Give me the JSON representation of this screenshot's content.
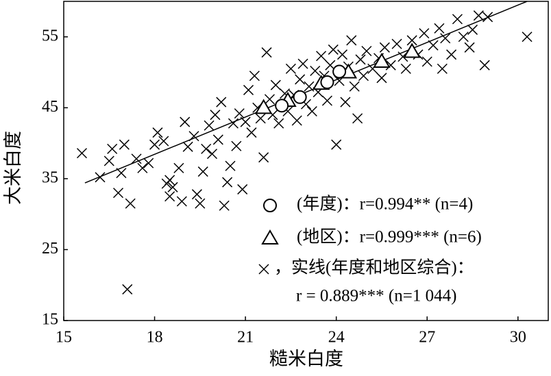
{
  "chart_data": {
    "type": "scatter",
    "xlabel": "糙米白度",
    "ylabel": "大米白度",
    "xlim": [
      15,
      31
    ],
    "ylim": [
      15,
      60
    ],
    "xticks": [
      15,
      18,
      21,
      24,
      27,
      30
    ],
    "yticks": [
      15,
      25,
      35,
      45,
      55
    ],
    "series": [
      {
        "name": "(年度)：r=0.994** (n=4)",
        "marker": "circle",
        "color": "#000000",
        "x": [
          22.2,
          22.8,
          23.7,
          24.1
        ],
        "values": [
          45.3,
          46.5,
          48.6,
          50.1
        ]
      },
      {
        "name": "(地区)：r=0.999*** (n=6)",
        "marker": "triangle",
        "color": "#000000",
        "x": [
          21.6,
          22.4,
          23.5,
          24.4,
          25.5,
          26.5
        ],
        "values": [
          45.0,
          46.0,
          48.4,
          50.0,
          51.5,
          52.9
        ]
      },
      {
        "name": "，实线(年度和地区综合)：",
        "marker": "x",
        "color": "#000000",
        "x": [
          15.6,
          16.2,
          16.5,
          16.6,
          16.8,
          16.9,
          17,
          17.1,
          17.2,
          17.4,
          17.6,
          17.8,
          18,
          18.1,
          18.3,
          18.4,
          18.5,
          18.5,
          18.6,
          18.8,
          18.9,
          19,
          19.1,
          19.3,
          19.4,
          19.5,
          19.6,
          19.7,
          19.8,
          19.9,
          20,
          20.1,
          20.2,
          20.3,
          20.4,
          20.5,
          20.6,
          20.7,
          20.8,
          20.9,
          21,
          21.1,
          21.2,
          21.3,
          21.4,
          21.5,
          21.6,
          21.7,
          21.8,
          21.9,
          22,
          22.1,
          22.3,
          22.4,
          22.5,
          22.6,
          22.7,
          22.8,
          22.9,
          23,
          23.1,
          23.2,
          23.3,
          23.4,
          23.5,
          23.6,
          23.7,
          23.8,
          23.9,
          24,
          24.1,
          24.2,
          24.3,
          24.4,
          24.5,
          24.6,
          24.7,
          24.8,
          24.9,
          25,
          25.2,
          25.4,
          25.5,
          25.6,
          25.8,
          26,
          26.2,
          26.3,
          26.5,
          26.7,
          26.9,
          27,
          27.2,
          27.4,
          27.5,
          27.6,
          27.8,
          28,
          28.2,
          28.4,
          28.5,
          28.7,
          28.9,
          29,
          30.3
        ],
        "values": [
          38.6,
          35.2,
          37.5,
          39.2,
          33,
          35.8,
          39.8,
          19.4,
          31.5,
          37.8,
          36.5,
          37.2,
          39.8,
          41.5,
          40.3,
          34.3,
          34.8,
          32.5,
          33.8,
          36.5,
          31.8,
          43,
          39.5,
          41,
          32.8,
          31.5,
          36,
          39.2,
          42.5,
          38.5,
          44,
          40.5,
          45.8,
          31.2,
          34.5,
          36.8,
          42.8,
          39.6,
          44.2,
          33.5,
          43,
          47.5,
          41.5,
          49.5,
          45,
          43.5,
          38,
          52.8,
          46.2,
          44,
          48.2,
          42.8,
          47,
          44.5,
          50.5,
          46.8,
          43.2,
          49,
          51.2,
          45.5,
          48,
          44.5,
          50.2,
          47.2,
          52.3,
          49.5,
          46,
          51,
          53.2,
          39.8,
          48.8,
          52.5,
          45.8,
          50.8,
          54.5,
          48,
          43.5,
          51.8,
          49.5,
          53,
          50.5,
          52,
          49.2,
          53.5,
          51,
          54,
          52.2,
          50.5,
          54.5,
          52.5,
          55.5,
          51.5,
          53.8,
          56.2,
          50.5,
          54.8,
          52.5,
          57.5,
          55,
          53.5,
          56,
          58,
          51,
          57.8,
          55
        ]
      }
    ],
    "fit_line": {
      "x": [
        15.7,
        30.3
      ],
      "values": [
        34.4,
        60.0
      ],
      "color": "#000000"
    },
    "annotation": "r = 0.889*** (n=1 044)"
  }
}
